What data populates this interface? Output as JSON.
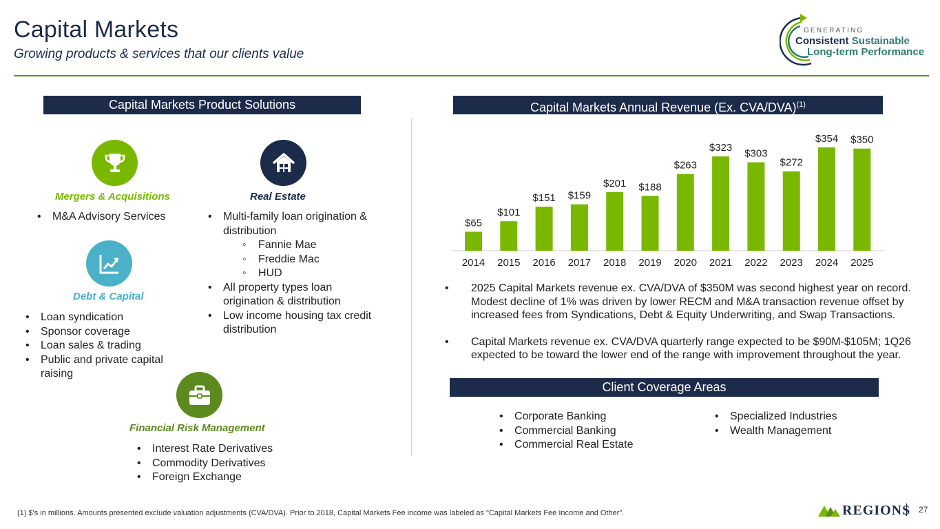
{
  "header": {
    "title": "Capital Markets",
    "subtitle": "Growing products & services that our clients value"
  },
  "logo": {
    "generating": "GENERATING",
    "consistent": "Consistent",
    "sustainable": "Sustainable",
    "long_term": "Long-term Performance"
  },
  "left_panel": {
    "header": "Capital Markets Product Solutions",
    "categories": {
      "ma": {
        "title": "Mergers & Acquisitions",
        "icon": "trophy-icon",
        "color": "#7ab800",
        "items": [
          "M&A Advisory Services"
        ]
      },
      "real_estate": {
        "title": "Real Estate",
        "icon": "house-icon",
        "color": "#1c2b4a",
        "items": [
          "Multi-family loan origination & distribution",
          "All property types loan origination & distribution",
          "Low income housing tax credit distribution"
        ],
        "sub_items": [
          "Fannie Mae",
          "Freddie Mac",
          "HUD"
        ]
      },
      "debt": {
        "title": "Debt & Capital",
        "icon": "trend-chart-icon",
        "color": "#4ab1c8",
        "items": [
          "Loan syndication",
          "Sponsor coverage",
          "Loan sales & trading",
          "Public and private capital raising"
        ]
      },
      "frm": {
        "title": "Financial Risk Management",
        "icon": "briefcase-icon",
        "color": "#5c8a1e",
        "items": [
          "Interest Rate Derivatives",
          "Commodity Derivatives",
          "Foreign Exchange"
        ]
      }
    }
  },
  "right_panel": {
    "chart_header": "Capital Markets Annual Revenue (Ex. CVA/DVA)",
    "chart_header_sup": "(1)",
    "notes": [
      "2025 Capital Markets revenue ex. CVA/DVA of $350M was second highest year on record. Modest decline of 1% was driven by lower RECM and M&A transaction revenue offset by increased fees from Syndications, Debt & Equity Underwriting, and Swap Transactions.",
      "Capital Markets revenue ex. CVA/DVA quarterly range expected to be $90M-$105M; 1Q26 expected to be toward the lower end of the range with improvement throughout the year."
    ],
    "coverage_header": "Client Coverage Areas",
    "coverage_col1": [
      "Corporate Banking",
      "Commercial Banking",
      "Commercial Real Estate"
    ],
    "coverage_col2": [
      "Specialized Industries",
      "Wealth Management"
    ]
  },
  "chart_data": {
    "type": "bar",
    "title": "Capital Markets Annual Revenue (Ex. CVA/DVA)",
    "xlabel": "",
    "ylabel": "",
    "categories": [
      "2014",
      "2015",
      "2016",
      "2017",
      "2018",
      "2019",
      "2020",
      "2021",
      "2022",
      "2023",
      "2024",
      "2025"
    ],
    "values": [
      65,
      101,
      151,
      159,
      201,
      188,
      263,
      323,
      303,
      272,
      354,
      350
    ],
    "labels": [
      "$65",
      "$101",
      "$151",
      "$159",
      "$201",
      "$188",
      "$263",
      "$323",
      "$303",
      "$272",
      "$354",
      "$350"
    ],
    "ylim": [
      0,
      354
    ],
    "grid": false,
    "bar_color": "#7ab800"
  },
  "footer": {
    "footnote": "(1) $'s in millions. Amounts presented exclude valuation adjustments (CVA/DVA). Prior to 2018, Capital Markets Fee income was labeled as \"Capital Markets Fee Income and Other\".",
    "brand": "REGIONS",
    "page_number": "27"
  },
  "colors": {
    "navy": "#1c2b4a",
    "green": "#7ab800",
    "dark_green": "#5c8a1e",
    "teal": "#4ab1c8"
  }
}
